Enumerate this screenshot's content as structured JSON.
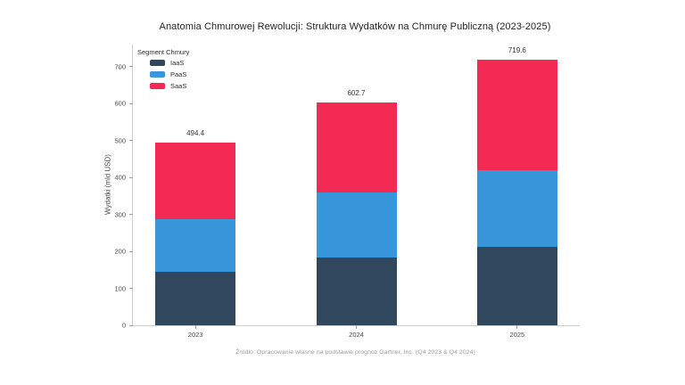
{
  "title": "Anatomia Chmurowej Rewolucji: Struktura Wydatków na Chmurę Publiczną (2023-2025)",
  "footnote": "Źródło: Opracowanie własne na podstawie prognoz Gartner, Inc. (Q4 2023 & Q4 2024)",
  "y_axis_label": "Wydatki (mld USD)",
  "legend": {
    "title": "Segment Chmury"
  },
  "colors": {
    "iaas": "#30475e",
    "paas": "#3797da",
    "saas": "#f32b54",
    "axis_line": "#c9ced4"
  },
  "chart_data": {
    "type": "bar",
    "stacked": true,
    "title": "Anatomia Chmurowej Rewolucji: Struktura Wydatków na Chmurę Publiczną (2023-2025)",
    "categories": [
      "2023",
      "2024",
      "2025"
    ],
    "series": [
      {
        "name": "IaaS",
        "color": "#30475e",
        "values": [
          143.9,
          182.2,
          211.9
        ]
      },
      {
        "name": "PaaS",
        "color": "#3797da",
        "values": [
          142.9,
          176.5,
          208.6
        ]
      },
      {
        "name": "SaaS",
        "color": "#f32b54",
        "values": [
          207.6,
          244.0,
          299.1
        ]
      }
    ],
    "totals": [
      494.4,
      602.7,
      719.6
    ],
    "total_labels": [
      "494.4",
      "602.7",
      "719.6"
    ],
    "xlabel": "",
    "ylabel": "Wydatki (mld USD)",
    "ylim": [
      0,
      760
    ],
    "yticks": [
      0,
      100,
      200,
      300,
      400,
      500,
      600,
      700
    ],
    "legend_title": "Segment Chmury",
    "legend_position": "top-left",
    "grid": false
  }
}
